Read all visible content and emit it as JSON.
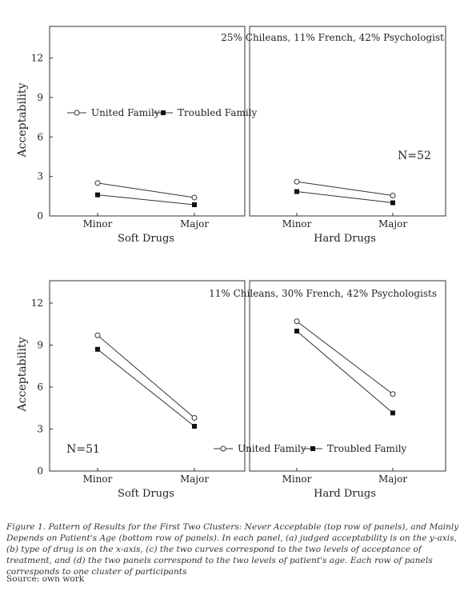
{
  "chart_data": [
    {
      "type": "line",
      "row": "top",
      "ylabel": "Acceptability",
      "yticks": [
        0,
        3,
        6,
        9,
        12
      ],
      "ylim": [
        0,
        14.4
      ],
      "panel_annotation": "25% Chileans, 11% French, 42% Psychologist",
      "n_label": "N=52",
      "legend": [
        "United Family",
        "Troubled Family"
      ],
      "legend_location": "top row, left panel (centre), extending into right panel",
      "panels": [
        {
          "xlabel": "Soft Drugs",
          "categories": [
            "Minor",
            "Major"
          ],
          "series": [
            {
              "name": "United Family",
              "values": [
                2.5,
                1.4
              ]
            },
            {
              "name": "Troubled Family",
              "values": [
                1.6,
                0.85
              ]
            }
          ]
        },
        {
          "xlabel": "Hard Drugs",
          "categories": [
            "Minor",
            "Major"
          ],
          "series": [
            {
              "name": "United Family",
              "values": [
                2.6,
                1.55
              ]
            },
            {
              "name": "Troubled Family",
              "values": [
                1.85,
                1.0
              ]
            }
          ]
        }
      ]
    },
    {
      "type": "line",
      "row": "bottom",
      "ylabel": "Acceptability",
      "yticks": [
        0,
        3,
        6,
        9,
        12
      ],
      "ylim": [
        0,
        13.6
      ],
      "panel_annotation": "11% Chileans, 30% French, 42% Psychologists",
      "n_label": "N=51",
      "legend": [
        "United Family",
        "Troubled Family"
      ],
      "legend_location": "bottom row, bottom-left of right panel",
      "panels": [
        {
          "xlabel": "Soft Drugs",
          "categories": [
            "Minor",
            "Major"
          ],
          "series": [
            {
              "name": "United Family",
              "values": [
                9.7,
                3.8
              ]
            },
            {
              "name": "Troubled Family",
              "values": [
                8.7,
                3.2
              ]
            }
          ]
        },
        {
          "xlabel": "Hard Drugs",
          "categories": [
            "Minor",
            "Major"
          ],
          "series": [
            {
              "name": "United Family",
              "values": [
                10.7,
                5.5
              ]
            },
            {
              "name": "Troubled Family",
              "values": [
                10.0,
                4.15
              ]
            }
          ]
        }
      ]
    }
  ],
  "caption": "Figure 1. Pattern of Results for the First Two Clusters: Never Acceptable (top row of panels), and Mainly Depends on Patient's Age (bottom row of panels). In each panel, (a) judged acceptability is on the y-axis, (b) type of drug is on the x-axis, (c) the two curves correspond to the two levels of acceptance of treatment, and (d) the two panels correspond to the two levels of patient's age. Each row of panels corresponds to one cluster of participants",
  "source": "Source: own work"
}
